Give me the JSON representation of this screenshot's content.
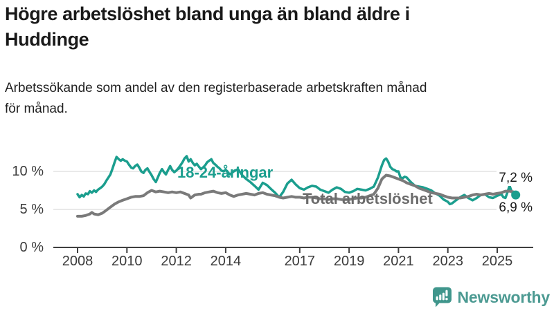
{
  "header": {
    "title_line1": "Högre arbetslöshet bland unga än bland äldre i",
    "title_line2": "Huddinge",
    "subtitle_line1": "Arbetssökande som andel av den registerbaserade arbetskraften månad",
    "subtitle_line2": "för månad."
  },
  "footer": {
    "brand": "Newsworthy",
    "logo_icon": "speech-bubble-bar-chart-icon",
    "logo_color": "#40968c",
    "brand_text_color": "#4c9a92"
  },
  "chart_data": {
    "type": "line",
    "title": "Högre arbetslöshet bland unga än bland äldre i Huddinge",
    "subtitle": "Arbetssökande som andel av den registerbaserade arbetskraften månad för månad.",
    "xlabel": "",
    "ylabel": "",
    "x_unit": "decimal-year (monthly observations)",
    "ylim": [
      0,
      12.5
    ],
    "xlim": [
      2007.5,
      2026.0
    ],
    "grid": "horizontal-only",
    "legend_position": "inline-labels-on-lines",
    "colors": {
      "grid_line": "#e2e2e2",
      "axis_line": "#404040",
      "tick_label": "#3a3a3a",
      "end_label": "#1a1a1a"
    },
    "yticks": [
      {
        "value": 0,
        "label": "0 %"
      },
      {
        "value": 5,
        "label": "5 %"
      },
      {
        "value": 10,
        "label": "10 %"
      }
    ],
    "xticks": [
      {
        "value": 2008,
        "label": "2008"
      },
      {
        "value": 2010,
        "label": "2010"
      },
      {
        "value": 2012,
        "label": "2012"
      },
      {
        "value": 2014,
        "label": "2014"
      },
      {
        "value": 2017,
        "label": "2017"
      },
      {
        "value": 2019,
        "label": "2019"
      },
      {
        "value": 2021,
        "label": "2021"
      },
      {
        "value": 2023,
        "label": "2023"
      },
      {
        "value": 2025,
        "label": "2025"
      }
    ],
    "series": [
      {
        "name": "18-24-åringar",
        "color": "#1b9e8e",
        "line_width": 3.5,
        "end_value": 6.9,
        "end_label_text": "6,9 %",
        "has_end_dot": true,
        "points": [
          [
            2008.0,
            7.0
          ],
          [
            2008.08,
            6.6
          ],
          [
            2008.17,
            6.9
          ],
          [
            2008.25,
            6.7
          ],
          [
            2008.33,
            7.1
          ],
          [
            2008.42,
            7.0
          ],
          [
            2008.5,
            7.4
          ],
          [
            2008.58,
            7.2
          ],
          [
            2008.67,
            7.5
          ],
          [
            2008.75,
            7.3
          ],
          [
            2008.83,
            7.6
          ],
          [
            2008.92,
            7.8
          ],
          [
            2009.0,
            8.0
          ],
          [
            2009.08,
            8.3
          ],
          [
            2009.17,
            8.8
          ],
          [
            2009.25,
            9.2
          ],
          [
            2009.33,
            9.6
          ],
          [
            2009.42,
            10.4
          ],
          [
            2009.5,
            11.2
          ],
          [
            2009.58,
            11.9
          ],
          [
            2009.67,
            11.6
          ],
          [
            2009.75,
            11.4
          ],
          [
            2009.83,
            11.6
          ],
          [
            2009.92,
            11.4
          ],
          [
            2010.0,
            11.3
          ],
          [
            2010.08,
            10.9
          ],
          [
            2010.17,
            10.5
          ],
          [
            2010.25,
            10.4
          ],
          [
            2010.33,
            10.7
          ],
          [
            2010.42,
            10.9
          ],
          [
            2010.5,
            10.5
          ],
          [
            2010.58,
            10.0
          ],
          [
            2010.67,
            9.8
          ],
          [
            2010.75,
            10.2
          ],
          [
            2010.83,
            10.4
          ],
          [
            2010.92,
            9.9
          ],
          [
            2011.0,
            9.5
          ],
          [
            2011.08,
            9.0
          ],
          [
            2011.17,
            8.6
          ],
          [
            2011.25,
            9.2
          ],
          [
            2011.33,
            9.8
          ],
          [
            2011.42,
            10.3
          ],
          [
            2011.5,
            9.9
          ],
          [
            2011.58,
            9.6
          ],
          [
            2011.67,
            10.2
          ],
          [
            2011.75,
            10.7
          ],
          [
            2011.83,
            10.2
          ],
          [
            2011.92,
            9.9
          ],
          [
            2012.0,
            10.1
          ],
          [
            2012.08,
            10.4
          ],
          [
            2012.17,
            10.8
          ],
          [
            2012.25,
            11.2
          ],
          [
            2012.33,
            11.7
          ],
          [
            2012.42,
            12.0
          ],
          [
            2012.5,
            11.3
          ],
          [
            2012.58,
            11.6
          ],
          [
            2012.67,
            11.1
          ],
          [
            2012.75,
            10.8
          ],
          [
            2012.83,
            11.0
          ],
          [
            2012.92,
            10.6
          ],
          [
            2013.0,
            10.3
          ],
          [
            2013.08,
            10.5
          ],
          [
            2013.17,
            10.8
          ],
          [
            2013.25,
            11.2
          ],
          [
            2013.33,
            11.4
          ],
          [
            2013.42,
            11.6
          ],
          [
            2013.5,
            11.1
          ],
          [
            2013.58,
            10.9
          ],
          [
            2013.67,
            10.6
          ],
          [
            2013.75,
            10.4
          ],
          [
            2013.83,
            10.1
          ],
          [
            2013.92,
            10.0
          ],
          [
            2014.0,
            10.2
          ],
          [
            2014.17,
            9.6
          ],
          [
            2014.33,
            10.0
          ],
          [
            2014.5,
            10.3
          ],
          [
            2014.67,
            9.5
          ],
          [
            2014.83,
            9.0
          ],
          [
            2015.0,
            8.6
          ],
          [
            2015.17,
            8.1
          ],
          [
            2015.33,
            7.6
          ],
          [
            2015.5,
            8.5
          ],
          [
            2015.67,
            8.2
          ],
          [
            2015.83,
            7.7
          ],
          [
            2016.0,
            7.2
          ],
          [
            2016.17,
            6.6
          ],
          [
            2016.33,
            7.3
          ],
          [
            2016.5,
            8.4
          ],
          [
            2016.67,
            8.9
          ],
          [
            2016.83,
            8.3
          ],
          [
            2017.0,
            7.8
          ],
          [
            2017.17,
            7.6
          ],
          [
            2017.33,
            7.9
          ],
          [
            2017.5,
            8.1
          ],
          [
            2017.67,
            8.0
          ],
          [
            2017.83,
            7.6
          ],
          [
            2018.0,
            7.4
          ],
          [
            2018.17,
            7.2
          ],
          [
            2018.33,
            7.6
          ],
          [
            2018.5,
            7.9
          ],
          [
            2018.67,
            7.7
          ],
          [
            2018.83,
            7.3
          ],
          [
            2019.0,
            7.2
          ],
          [
            2019.17,
            7.4
          ],
          [
            2019.33,
            7.7
          ],
          [
            2019.5,
            7.6
          ],
          [
            2019.67,
            7.5
          ],
          [
            2019.83,
            7.7
          ],
          [
            2020.0,
            8.0
          ],
          [
            2020.17,
            9.2
          ],
          [
            2020.33,
            10.8
          ],
          [
            2020.42,
            11.5
          ],
          [
            2020.5,
            11.7
          ],
          [
            2020.58,
            11.3
          ],
          [
            2020.67,
            10.6
          ],
          [
            2020.75,
            10.3
          ],
          [
            2020.83,
            10.2
          ],
          [
            2020.92,
            10.0
          ],
          [
            2021.0,
            10.0
          ],
          [
            2021.08,
            9.2
          ],
          [
            2021.17,
            9.1
          ],
          [
            2021.25,
            9.3
          ],
          [
            2021.33,
            9.2
          ],
          [
            2021.5,
            8.6
          ],
          [
            2021.67,
            8.1
          ],
          [
            2021.83,
            8.0
          ],
          [
            2022.0,
            7.9
          ],
          [
            2022.17,
            7.7
          ],
          [
            2022.33,
            7.5
          ],
          [
            2022.5,
            7.1
          ],
          [
            2022.67,
            6.8
          ],
          [
            2022.83,
            6.3
          ],
          [
            2023.0,
            6.0
          ],
          [
            2023.08,
            5.7
          ],
          [
            2023.17,
            5.8
          ],
          [
            2023.33,
            6.2
          ],
          [
            2023.5,
            6.6
          ],
          [
            2023.67,
            6.9
          ],
          [
            2023.83,
            6.5
          ],
          [
            2024.0,
            6.2
          ],
          [
            2024.17,
            6.5
          ],
          [
            2024.33,
            6.9
          ],
          [
            2024.5,
            7.0
          ],
          [
            2024.67,
            6.6
          ],
          [
            2024.83,
            6.5
          ],
          [
            2025.0,
            6.8
          ],
          [
            2025.17,
            7.0
          ],
          [
            2025.25,
            6.6
          ],
          [
            2025.33,
            6.5
          ],
          [
            2025.42,
            7.3
          ],
          [
            2025.5,
            8.1
          ],
          [
            2025.58,
            7.4
          ],
          [
            2025.67,
            6.8
          ],
          [
            2025.75,
            6.9
          ]
        ]
      },
      {
        "name": "Total arbetslöshet",
        "color": "#7a7a7a",
        "line_width": 4,
        "end_value": 7.2,
        "end_label_text": "7,2 %",
        "has_end_dot": false,
        "points": [
          [
            2008.0,
            4.1
          ],
          [
            2008.17,
            4.1
          ],
          [
            2008.33,
            4.2
          ],
          [
            2008.5,
            4.4
          ],
          [
            2008.58,
            4.6
          ],
          [
            2008.67,
            4.4
          ],
          [
            2008.83,
            4.3
          ],
          [
            2009.0,
            4.5
          ],
          [
            2009.17,
            4.9
          ],
          [
            2009.33,
            5.3
          ],
          [
            2009.5,
            5.7
          ],
          [
            2009.67,
            6.0
          ],
          [
            2009.83,
            6.2
          ],
          [
            2010.0,
            6.4
          ],
          [
            2010.17,
            6.6
          ],
          [
            2010.33,
            6.7
          ],
          [
            2010.5,
            6.7
          ],
          [
            2010.67,
            6.8
          ],
          [
            2010.83,
            7.2
          ],
          [
            2011.0,
            7.5
          ],
          [
            2011.17,
            7.3
          ],
          [
            2011.33,
            7.4
          ],
          [
            2011.5,
            7.3
          ],
          [
            2011.67,
            7.2
          ],
          [
            2011.83,
            7.3
          ],
          [
            2012.0,
            7.2
          ],
          [
            2012.17,
            7.3
          ],
          [
            2012.33,
            7.1
          ],
          [
            2012.5,
            6.9
          ],
          [
            2012.58,
            6.5
          ],
          [
            2012.75,
            6.9
          ],
          [
            2012.92,
            7.0
          ],
          [
            2013.0,
            7.0
          ],
          [
            2013.17,
            7.2
          ],
          [
            2013.33,
            7.3
          ],
          [
            2013.5,
            7.4
          ],
          [
            2013.67,
            7.2
          ],
          [
            2013.83,
            7.1
          ],
          [
            2014.0,
            7.2
          ],
          [
            2014.17,
            6.9
          ],
          [
            2014.33,
            6.7
          ],
          [
            2014.5,
            6.9
          ],
          [
            2014.67,
            7.0
          ],
          [
            2014.83,
            7.1
          ],
          [
            2015.0,
            7.0
          ],
          [
            2015.17,
            6.9
          ],
          [
            2015.33,
            7.1
          ],
          [
            2015.5,
            7.2
          ],
          [
            2015.67,
            7.0
          ],
          [
            2015.83,
            6.9
          ],
          [
            2016.0,
            6.8
          ],
          [
            2016.17,
            6.6
          ],
          [
            2016.33,
            6.5
          ],
          [
            2016.5,
            6.6
          ],
          [
            2016.67,
            6.7
          ],
          [
            2016.83,
            6.6
          ],
          [
            2017.0,
            6.6
          ],
          [
            2017.17,
            6.5
          ],
          [
            2017.33,
            6.6
          ],
          [
            2017.5,
            6.6
          ],
          [
            2017.67,
            6.5
          ],
          [
            2017.83,
            6.4
          ],
          [
            2018.0,
            6.4
          ],
          [
            2018.17,
            6.3
          ],
          [
            2018.33,
            6.4
          ],
          [
            2018.5,
            6.4
          ],
          [
            2018.67,
            6.3
          ],
          [
            2018.83,
            6.3
          ],
          [
            2019.0,
            6.3
          ],
          [
            2019.17,
            6.4
          ],
          [
            2019.33,
            6.5
          ],
          [
            2019.5,
            6.5
          ],
          [
            2019.67,
            6.6
          ],
          [
            2019.83,
            6.8
          ],
          [
            2020.0,
            7.0
          ],
          [
            2020.17,
            7.8
          ],
          [
            2020.33,
            9.0
          ],
          [
            2020.5,
            9.5
          ],
          [
            2020.67,
            9.4
          ],
          [
            2020.83,
            9.2
          ],
          [
            2021.0,
            9.0
          ],
          [
            2021.17,
            8.8
          ],
          [
            2021.33,
            8.5
          ],
          [
            2021.5,
            8.3
          ],
          [
            2021.67,
            8.1
          ],
          [
            2021.83,
            7.8
          ],
          [
            2022.0,
            7.6
          ],
          [
            2022.17,
            7.4
          ],
          [
            2022.33,
            7.2
          ],
          [
            2022.5,
            7.1
          ],
          [
            2022.67,
            7.0
          ],
          [
            2022.83,
            6.8
          ],
          [
            2023.0,
            6.6
          ],
          [
            2023.17,
            6.5
          ],
          [
            2023.33,
            6.5
          ],
          [
            2023.5,
            6.5
          ],
          [
            2023.67,
            6.6
          ],
          [
            2023.83,
            6.7
          ],
          [
            2024.0,
            6.9
          ],
          [
            2024.17,
            7.0
          ],
          [
            2024.33,
            6.9
          ],
          [
            2024.5,
            7.0
          ],
          [
            2024.67,
            7.1
          ],
          [
            2024.83,
            7.0
          ],
          [
            2025.0,
            7.1
          ],
          [
            2025.17,
            7.2
          ],
          [
            2025.33,
            7.4
          ],
          [
            2025.5,
            7.4
          ],
          [
            2025.67,
            7.3
          ],
          [
            2025.75,
            7.2
          ]
        ]
      }
    ]
  }
}
